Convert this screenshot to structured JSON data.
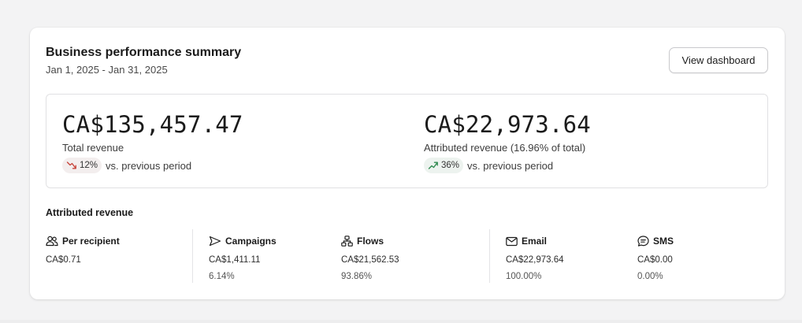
{
  "card": {
    "title": "Business performance summary",
    "date_range": "Jan 1, 2025 - Jan 31, 2025",
    "view_dashboard_label": "View dashboard"
  },
  "metrics": {
    "total": {
      "value": "CA$135,457.47",
      "label": "Total revenue",
      "change": "12%",
      "direction": "down",
      "comparison": "vs. previous period"
    },
    "attributed": {
      "value": "CA$22,973.64",
      "label": "Attributed revenue (16.96% of total)",
      "change": "36%",
      "direction": "up",
      "comparison": "vs. previous period"
    }
  },
  "attributed_section": {
    "title": "Attributed revenue",
    "per_recipient": {
      "label": "Per recipient",
      "icon": "people-icon",
      "value": "CA$0.71"
    },
    "campaigns": {
      "label": "Campaigns",
      "icon": "send-icon",
      "value": "CA$1,411.11",
      "pct": "6.14%"
    },
    "flows": {
      "label": "Flows",
      "icon": "flows-icon",
      "value": "CA$21,562.53",
      "pct": "93.86%"
    },
    "email": {
      "label": "Email",
      "icon": "mail-icon",
      "value": "CA$22,973.64",
      "pct": "100.00%"
    },
    "sms": {
      "label": "SMS",
      "icon": "sms-icon",
      "value": "CA$0.00",
      "pct": "0.00%"
    }
  },
  "colors": {
    "down": "#c8463d",
    "up": "#2e8a4f",
    "border": "#e1e1e3",
    "background": "#f3f3f4"
  }
}
